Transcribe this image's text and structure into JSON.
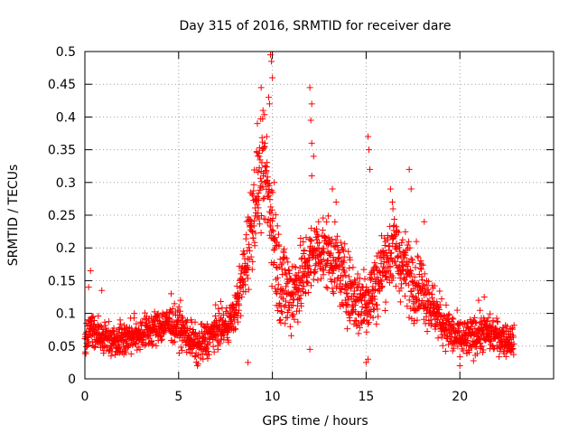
{
  "chart_data": {
    "type": "scatter",
    "title": "Day 315 of 2016, SRMTID for receiver dare",
    "xlabel": "GPS time / hours",
    "ylabel": "SRMTID / TECUs",
    "xlim": [
      0,
      25
    ],
    "ylim": [
      0,
      0.5
    ],
    "x_ticks": [
      "0",
      "5",
      "10",
      "15",
      "20"
    ],
    "y_ticks": [
      "0",
      "0.05",
      "0.1",
      "0.15",
      "0.2",
      "0.25",
      "0.3",
      "0.35",
      "0.4",
      "0.45",
      "0.5"
    ],
    "grid": true,
    "marker": "+",
    "color": "#ff0000",
    "series": [
      {
        "name": "SRMTID",
        "profile_x": [
          0,
          0.3,
          0.8,
          1.5,
          2.5,
          3.5,
          4.5,
          5.0,
          5.5,
          6.0,
          6.5,
          7.0,
          7.5,
          8.0,
          8.4,
          8.7,
          9.0,
          9.3,
          9.6,
          9.9,
          10.2,
          10.6,
          11.0,
          11.5,
          12.0,
          12.5,
          13.0,
          13.5,
          14.0,
          14.5,
          15.0,
          15.5,
          16.0,
          16.5,
          17.0,
          17.5,
          18.0,
          18.5,
          19.0,
          19.5,
          20.0,
          20.5,
          21.0,
          21.5,
          22.0,
          22.5,
          22.9
        ],
        "profile_y": [
          0.06,
          0.08,
          0.065,
          0.06,
          0.065,
          0.075,
          0.085,
          0.08,
          0.065,
          0.05,
          0.06,
          0.075,
          0.08,
          0.1,
          0.15,
          0.2,
          0.26,
          0.3,
          0.31,
          0.26,
          0.18,
          0.14,
          0.13,
          0.15,
          0.18,
          0.2,
          0.19,
          0.17,
          0.14,
          0.12,
          0.12,
          0.14,
          0.18,
          0.2,
          0.17,
          0.15,
          0.14,
          0.11,
          0.09,
          0.07,
          0.06,
          0.06,
          0.07,
          0.07,
          0.065,
          0.06,
          0.06
        ],
        "spread_x": [
          0,
          8,
          8.8,
          10.5,
          11.5,
          14,
          15,
          17.5,
          19,
          23
        ],
        "spread_y": [
          0.022,
          0.025,
          0.06,
          0.07,
          0.05,
          0.045,
          0.05,
          0.05,
          0.03,
          0.02
        ],
        "highlights": [
          {
            "x": 0.3,
            "y": 0.165
          },
          {
            "x": 0.2,
            "y": 0.14
          },
          {
            "x": 0.9,
            "y": 0.135
          },
          {
            "x": 4.6,
            "y": 0.13
          },
          {
            "x": 5.1,
            "y": 0.12
          },
          {
            "x": 6.0,
            "y": 0.02
          },
          {
            "x": 6.3,
            "y": 0.03
          },
          {
            "x": 8.7,
            "y": 0.025
          },
          {
            "x": 9.2,
            "y": 0.39
          },
          {
            "x": 9.4,
            "y": 0.445
          },
          {
            "x": 9.5,
            "y": 0.41
          },
          {
            "x": 9.6,
            "y": 0.36
          },
          {
            "x": 9.7,
            "y": 0.37
          },
          {
            "x": 9.8,
            "y": 0.43
          },
          {
            "x": 9.9,
            "y": 0.495
          },
          {
            "x": 9.95,
            "y": 0.485
          },
          {
            "x": 10.0,
            "y": 0.46
          },
          {
            "x": 9.85,
            "y": 0.42
          },
          {
            "x": 9.3,
            "y": 0.34
          },
          {
            "x": 10.1,
            "y": 0.3
          },
          {
            "x": 12.0,
            "y": 0.445
          },
          {
            "x": 12.1,
            "y": 0.42
          },
          {
            "x": 12.05,
            "y": 0.395
          },
          {
            "x": 12.1,
            "y": 0.36
          },
          {
            "x": 12.2,
            "y": 0.34
          },
          {
            "x": 12.1,
            "y": 0.31
          },
          {
            "x": 12.0,
            "y": 0.045
          },
          {
            "x": 13.2,
            "y": 0.29
          },
          {
            "x": 13.4,
            "y": 0.27
          },
          {
            "x": 15.1,
            "y": 0.37
          },
          {
            "x": 15.15,
            "y": 0.35
          },
          {
            "x": 15.2,
            "y": 0.32
          },
          {
            "x": 15.0,
            "y": 0.025
          },
          {
            "x": 15.1,
            "y": 0.03
          },
          {
            "x": 16.3,
            "y": 0.29
          },
          {
            "x": 16.4,
            "y": 0.27
          },
          {
            "x": 17.3,
            "y": 0.32
          },
          {
            "x": 17.4,
            "y": 0.29
          },
          {
            "x": 18.1,
            "y": 0.24
          },
          {
            "x": 20.0,
            "y": 0.02
          },
          {
            "x": 21.3,
            "y": 0.125
          },
          {
            "x": 21.0,
            "y": 0.12
          }
        ]
      }
    ]
  }
}
